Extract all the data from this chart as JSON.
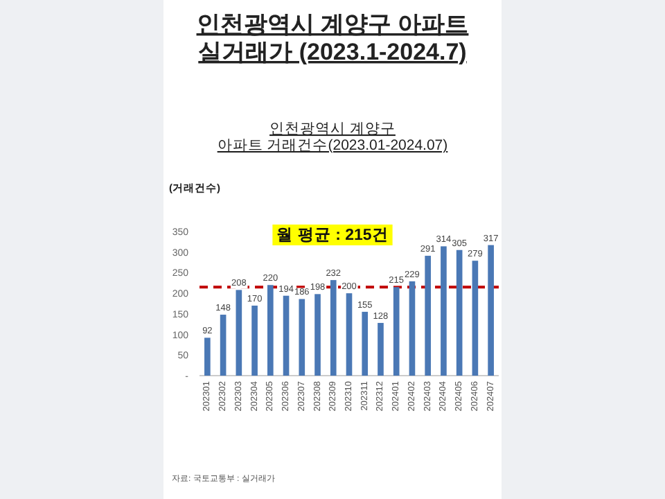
{
  "chart_data": {
    "type": "bar",
    "title": "인천광역시 계양구 아파트\n실거래가 (2023.1-2024.7)",
    "subtitle": "인천광역시 계양구\n아파트 거래건수(2023.01-2024.07)",
    "ylabel": "(거래건수)",
    "categories": [
      "202301",
      "202302",
      "202303",
      "202304",
      "202305",
      "202306",
      "202307",
      "202308",
      "202309",
      "202310",
      "202311",
      "202312",
      "202401",
      "202402",
      "202403",
      "202404",
      "202405",
      "202406",
      "202407"
    ],
    "values": [
      92,
      148,
      208,
      170,
      220,
      194,
      186,
      198,
      232,
      200,
      155,
      128,
      215,
      229,
      291,
      314,
      305,
      279,
      317
    ],
    "color": "#4a78b5",
    "data_labels": true,
    "ylim": [
      0,
      350
    ],
    "yticks": [
      {
        "value": 0,
        "label": "-"
      },
      50,
      100,
      150,
      200,
      250,
      300,
      350
    ],
    "ref_lines": [
      {
        "axis": "y",
        "value": 215,
        "label": "월 평균 : 215건",
        "color": "#c00000",
        "line_style": "dashed"
      }
    ],
    "annotations": [
      "자료: 국토교통부 : 실거래가"
    ]
  }
}
